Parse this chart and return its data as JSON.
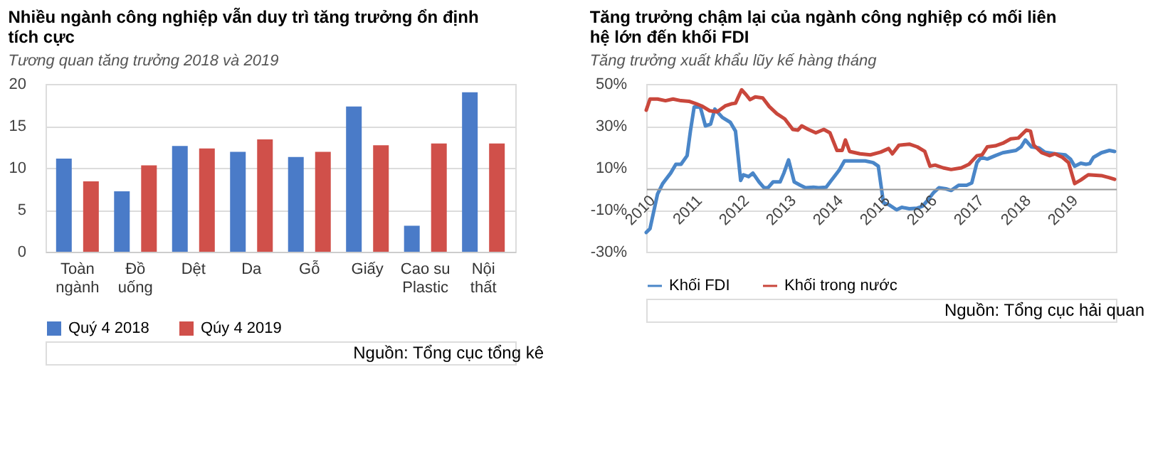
{
  "chart_data": [
    {
      "type": "bar",
      "title": "Nhiều ngành công nghiệp vẫn duy trì tăng trưởng ổn định tích cực",
      "subtitle": "Tương quan tăng trưởng 2018 và 2019",
      "categories": [
        "Toàn ngành",
        "Đồ uống",
        "Dệt",
        "Da",
        "Gỗ",
        "Giấy",
        "Cao su Plastic",
        "Nội thất"
      ],
      "series": [
        {
          "name": "Quý 4 2018",
          "color": "#4a7bc8",
          "values": [
            11.1,
            7.2,
            12.6,
            11.9,
            11.3,
            17.3,
            3.1,
            19.0
          ]
        },
        {
          "name": "Qúy 4 2019",
          "color": "#d0504a",
          "values": [
            8.4,
            10.3,
            12.3,
            13.4,
            11.9,
            12.7,
            12.9,
            12.9
          ]
        }
      ],
      "ylim": [
        0,
        20
      ],
      "yticks": [
        0,
        5,
        10,
        15,
        20
      ],
      "grid": "y",
      "legend": "bottom",
      "annotations": [
        "Nguồn: Tổng cục tổng kê"
      ]
    },
    {
      "type": "line",
      "title": "Tăng trưởng chậm lại của ngành công nghiệp có mối liên hệ lớn đến khối FDI",
      "subtitle": "Tăng trưởng xuất khẩu lũy kế hàng tháng",
      "series": [
        {
          "name": "Khối FDI",
          "color": "#4a86c8",
          "x": [
            2010.0,
            2010.08,
            2010.24,
            2010.35,
            2010.52,
            2010.63,
            2010.74,
            2010.87,
            2010.94,
            2011.02,
            2011.15,
            2011.26,
            2011.37,
            2011.46,
            2011.62,
            2011.79,
            2011.9,
            2012.01,
            2012.07,
            2012.18,
            2012.27,
            2012.4,
            2012.51,
            2012.59,
            2012.7,
            2012.85,
            2012.93,
            2013.03,
            2013.15,
            2013.28,
            2013.39,
            2013.56,
            2013.67,
            2013.83,
            2014.0,
            2014.11,
            2014.22,
            2014.44,
            2014.66,
            2014.83,
            2014.94,
            2015.05,
            2015.16,
            2015.33,
            2015.44,
            2015.6,
            2015.77,
            2015.88,
            2015.99,
            2016.12,
            2016.23,
            2016.38,
            2016.49,
            2016.65,
            2016.82,
            2016.93,
            2017.04,
            2017.13,
            2017.26,
            2017.43,
            2017.59,
            2017.87,
            2017.98,
            2018.07,
            2018.2,
            2018.36,
            2018.48,
            2018.7,
            2018.92,
            2019.03,
            2019.12,
            2019.25,
            2019.36,
            2019.44,
            2019.52,
            2019.69,
            2019.86,
            2019.97
          ],
          "values": [
            -20.8,
            -19,
            -2.5,
            2.5,
            7.5,
            11.7,
            11.7,
            15.8,
            27.5,
            39,
            39,
            30,
            30.8,
            38,
            34,
            31.7,
            27.5,
            4,
            6.7,
            5.8,
            7.5,
            3.3,
            0.5,
            0.5,
            3.3,
            3.3,
            7.5,
            13.8,
            3.3,
            1.7,
            0.5,
            0.8,
            0.5,
            0.8,
            5.8,
            9,
            13.3,
            13.3,
            13.3,
            12.5,
            10.8,
            -6.7,
            -7.5,
            -10,
            -8.8,
            -9.5,
            -9.2,
            -8.3,
            -5.5,
            -1.7,
            0.5,
            0,
            -0.8,
            1.7,
            1.7,
            2.8,
            12.5,
            15,
            14.2,
            15.8,
            17.2,
            18.3,
            20,
            23.3,
            20,
            19.5,
            17.5,
            16.7,
            16.2,
            14.2,
            10.8,
            12.2,
            11.7,
            12,
            15,
            17.2,
            18.3,
            17.8
          ]
        },
        {
          "name": "Khối trong nước",
          "color": "#c9473c",
          "x": [
            2010.0,
            2010.08,
            2010.24,
            2010.41,
            2010.57,
            2010.74,
            2010.91,
            2011.07,
            2011.18,
            2011.35,
            2011.51,
            2011.68,
            2011.81,
            2011.9,
            2012.03,
            2012.12,
            2012.21,
            2012.32,
            2012.48,
            2012.62,
            2012.78,
            2012.95,
            2013.12,
            2013.23,
            2013.31,
            2013.45,
            2013.61,
            2013.78,
            2013.91,
            2014.06,
            2014.17,
            2014.24,
            2014.33,
            2014.55,
            2014.77,
            2014.99,
            2015.16,
            2015.24,
            2015.38,
            2015.6,
            2015.77,
            2015.93,
            2016.04,
            2016.15,
            2016.32,
            2016.49,
            2016.71,
            2016.87,
            2017.04,
            2017.15,
            2017.26,
            2017.43,
            2017.59,
            2017.76,
            2017.92,
            2018.09,
            2018.18,
            2018.25,
            2018.42,
            2018.59,
            2018.7,
            2018.86,
            2018.99,
            2019.12,
            2019.25,
            2019.41,
            2019.69,
            2019.86,
            2019.97
          ],
          "values": [
            37.5,
            42.8,
            42.8,
            42,
            42.8,
            42,
            41.7,
            40.5,
            39.5,
            37.2,
            36.7,
            39.5,
            40.5,
            40.8,
            47.2,
            45,
            42.5,
            43.8,
            43.3,
            39.2,
            35.8,
            33.3,
            28.3,
            28,
            30,
            28.3,
            26.7,
            28.3,
            26.7,
            18.3,
            18.3,
            23.3,
            17.8,
            16.7,
            16.2,
            17.5,
            19.2,
            16.7,
            20.8,
            21.3,
            20,
            17.8,
            10.8,
            11.3,
            10,
            9.2,
            10,
            11.7,
            15.8,
            16.2,
            20,
            20.5,
            21.7,
            23.8,
            24.2,
            28,
            27.5,
            20.8,
            17.2,
            15.8,
            16.7,
            15,
            12.5,
            2.5,
            4.2,
            6.7,
            6.3,
            5.3,
            4.5
          ]
        }
      ],
      "xlim": [
        2010,
        2020
      ],
      "xticks": [
        2010,
        2011,
        2012,
        2013,
        2014,
        2015,
        2016,
        2017,
        2018,
        2019
      ],
      "ylim": [
        -30,
        50
      ],
      "yticks": [
        {
          "value": -30,
          "label": "-30%"
        },
        {
          "value": -10,
          "label": "-10%"
        },
        {
          "value": 10,
          "label": "10%"
        },
        {
          "value": 30,
          "label": "30%"
        },
        {
          "value": 50,
          "label": "50%"
        }
      ],
      "grid": "y",
      "legend": "bottom",
      "marker": "none",
      "line_style": "solid",
      "annotations": [
        "Nguồn: Tổng cục hải quan"
      ]
    }
  ]
}
